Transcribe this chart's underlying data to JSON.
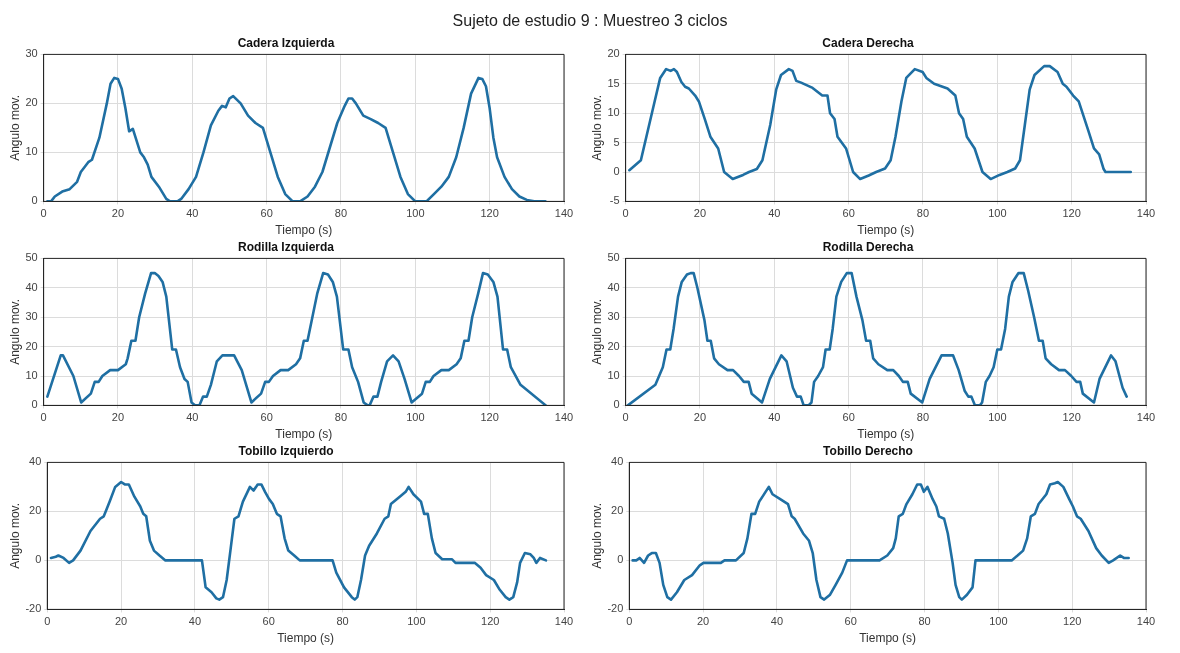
{
  "chart_data": [
    {
      "type": "line",
      "title": "Cadera Izquierda",
      "xlabel": "Tiempo (s)",
      "ylabel": "Angulo mov.",
      "annotations": [
        "Sujeto de estudio 9 : Muestreo 3 ciclos"
      ],
      "color": "#1f6fa3",
      "grid": true,
      "xlim": [
        0,
        140
      ],
      "xticks": [
        0,
        20,
        40,
        60,
        80,
        100,
        120,
        140
      ],
      "ylim": [
        0,
        30
      ],
      "yticks": [
        0,
        10,
        20,
        30
      ],
      "x": [
        1,
        2,
        3,
        5,
        7,
        9,
        10,
        12,
        13,
        15,
        17,
        18,
        19,
        20,
        21,
        22,
        23,
        24,
        26,
        27,
        28,
        29,
        31,
        33,
        34,
        36,
        37,
        39,
        41,
        43,
        45,
        47,
        48,
        49,
        50,
        51,
        53,
        55,
        57,
        59,
        61,
        63,
        65,
        67,
        69,
        71,
        73,
        75,
        77,
        79,
        81,
        82,
        83,
        84,
        86,
        88,
        90,
        92,
        94,
        96,
        98,
        100,
        103,
        105,
        107,
        109,
        111,
        113,
        115,
        117,
        118,
        119,
        120,
        121,
        122,
        124,
        126,
        128,
        130,
        132,
        135
      ],
      "values": [
        0,
        0,
        1,
        2,
        2.5,
        4,
        6,
        8,
        8.5,
        13,
        20,
        24,
        25.2,
        25,
        23,
        19,
        14.3,
        14.8,
        10,
        9,
        7.5,
        5,
        3,
        0.5,
        0,
        0,
        0.5,
        2.5,
        5,
        10,
        15.5,
        18.5,
        19.5,
        19.2,
        21,
        21.5,
        20,
        17.5,
        16,
        15,
        10,
        5,
        1.5,
        0,
        0,
        1,
        3,
        6,
        11,
        16,
        19.5,
        21,
        21,
        20,
        17.5,
        16.8,
        16,
        15,
        10,
        5,
        1.5,
        0,
        0,
        1.5,
        3,
        5,
        9,
        15,
        22,
        25.2,
        25,
        23.5,
        19,
        13,
        9,
        5,
        2.5,
        1,
        0.3,
        0,
        0
      ]
    },
    {
      "type": "line",
      "title": "Cadera Derecha",
      "xlabel": "Tiempo (s)",
      "ylabel": "Angulo mov.",
      "color": "#1f6fa3",
      "grid": true,
      "xlim": [
        0,
        140
      ],
      "xticks": [
        0,
        20,
        40,
        60,
        80,
        100,
        120,
        140
      ],
      "ylim": [
        -5,
        20
      ],
      "yticks": [
        -5,
        0,
        5,
        10,
        15,
        20
      ],
      "x": [
        1,
        4.1,
        7.8,
        9.3,
        10.9,
        12.1,
        13,
        13.8,
        15,
        16,
        17,
        18.7,
        19.7,
        21.3,
        22.8,
        24.9,
        26.5,
        28.8,
        31.6,
        33.2,
        35.3,
        36.8,
        38.9,
        40.5,
        41.8,
        43.9,
        44.9,
        45.9,
        47.2,
        50.3,
        52.9,
        54.3,
        55,
        56.2,
        57,
        59.3,
        61.2,
        63.1,
        65.4,
        67.4,
        69.8,
        71.3,
        72.6,
        74.2,
        75.5,
        77.8,
        79.9,
        80.9,
        83,
        86.6,
        88.7,
        89.7,
        90.8,
        91.8,
        93.9,
        96,
        98.2,
        100.6,
        102.7,
        104.8,
        106.1,
        107.4,
        108.7,
        110,
        112.6,
        114.1,
        116.2,
        117.6,
        118.6,
        120.4,
        121.9,
        124.5,
        126,
        127.4,
        128.6,
        129.1,
        135.9
      ],
      "values": [
        0.3,
        2,
        12,
        16,
        17.5,
        17.2,
        17.5,
        17,
        15.3,
        14.5,
        14.2,
        13,
        12,
        9,
        6,
        4,
        0,
        -1.2,
        -0.5,
        0,
        0.5,
        2,
        8,
        14,
        16.5,
        17.5,
        17.2,
        15.5,
        15.2,
        14.3,
        13,
        13,
        10,
        9,
        6,
        4,
        0,
        -1.2,
        -0.6,
        0,
        0.6,
        2,
        6,
        12,
        16,
        17.5,
        17,
        16,
        15,
        14.2,
        13,
        10,
        9,
        6,
        4,
        0,
        -1.2,
        -0.5,
        0,
        0.6,
        2,
        8,
        14,
        16.5,
        18,
        18,
        17,
        15,
        14.5,
        13,
        12,
        7,
        4,
        3,
        0.5,
        0,
        0
      ]
    },
    {
      "type": "line",
      "title": "Rodilla Izquierda",
      "xlabel": "Tiempo (s)",
      "ylabel": "Angulo mov.",
      "color": "#1f6fa3",
      "grid": true,
      "xlim": [
        0,
        140
      ],
      "xticks": [
        0,
        20,
        40,
        60,
        80,
        100,
        120,
        140
      ],
      "ylim": [
        0,
        50
      ],
      "yticks": [
        0,
        10,
        20,
        30,
        40,
        50
      ],
      "x": [
        1,
        4.6,
        5.2,
        8,
        10.1,
        12.7,
        13.75,
        14.8,
        15.8,
        17.9,
        20,
        22.1,
        22.6,
        23.6,
        24.7,
        25.7,
        27.3,
        28.9,
        29.9,
        30.9,
        32,
        33,
        34.6,
        35.6,
        36.7,
        37.9,
        38.75,
        39.8,
        40.8,
        41.9,
        42.9,
        43.9,
        45,
        46.6,
        48.1,
        51.25,
        53.3,
        55.9,
        58.5,
        59.6,
        60.6,
        61.7,
        63.75,
        65.8,
        67.9,
        69,
        70,
        71,
        72.3,
        73.6,
        75.2,
        76.5,
        77.8,
        78.9,
        80.6,
        82,
        83,
        84.6,
        86.1,
        87.2,
        87.7,
        88.75,
        89.8,
        90.8,
        92.4,
        94,
        95.5,
        97.1,
        99,
        101.8,
        102.8,
        103.9,
        104.9,
        107,
        109,
        111.1,
        112.2,
        113.2,
        114.3,
        115.3,
        116.9,
        118.2,
        119.5,
        121,
        122.1,
        123.6,
        124.7,
        125.7,
        128.3,
        135.1
      ],
      "values": [
        3,
        17,
        17,
        10,
        1,
        4,
        8,
        8,
        10,
        12,
        12,
        14,
        16,
        22,
        22,
        30,
        38,
        45,
        45,
        44,
        42,
        37,
        19,
        19,
        13,
        9,
        8,
        1,
        0,
        0,
        3,
        3,
        7,
        15,
        17,
        17,
        12,
        1,
        4,
        8,
        8,
        10,
        12,
        12,
        14,
        16,
        22,
        22,
        30,
        38,
        45,
        44.5,
        42,
        37,
        19,
        19,
        13,
        8,
        1,
        0,
        0,
        3,
        3,
        8,
        15,
        17,
        15,
        9,
        1,
        4,
        8,
        8,
        10,
        12,
        12,
        14,
        16,
        22,
        22,
        30,
        38,
        45,
        44.5,
        42,
        37,
        19,
        19,
        13,
        7,
        0
      ]
    },
    {
      "type": "line",
      "title": "Rodilla Derecha",
      "xlabel": "Tiempo (s)",
      "ylabel": "Angulo mov.",
      "color": "#1f6fa3",
      "grid": true,
      "xlim": [
        0,
        140
      ],
      "xticks": [
        0,
        20,
        40,
        60,
        80,
        100,
        120,
        140
      ],
      "ylim": [
        0,
        50
      ],
      "yticks": [
        0,
        10,
        20,
        30,
        40,
        50
      ],
      "x": [
        0.6,
        8,
        10,
        11,
        12,
        12.9,
        14.1,
        15.1,
        16.5,
        17.5,
        18.3,
        19.3,
        21.2,
        22,
        22.9,
        23.8,
        25.1,
        27.4,
        28.9,
        30.5,
        31.8,
        33.1,
        33.9,
        36.7,
        38.8,
        41.9,
        43.3,
        45,
        46.1,
        47.1,
        47.9,
        49.2,
        50,
        50.7,
        51.8,
        53.1,
        53.8,
        54.9,
        55.7,
        56.7,
        58,
        59.5,
        60.8,
        62.1,
        63.7,
        64.7,
        65.8,
        66.6,
        68,
        70.4,
        72,
        73.5,
        74.6,
        75.9,
        76.7,
        79.8,
        81.8,
        85,
        88.1,
        89.6,
        91.2,
        92.2,
        93,
        94,
        95.3,
        95.9,
        96.9,
        97.9,
        99,
        100,
        101,
        102.1,
        103.1,
        104.1,
        105.7,
        107.1,
        108.3,
        109.9,
        111.2,
        112.2,
        113,
        114.5,
        116.6,
        118.2,
        119.9,
        121.3,
        122.3,
        123,
        126,
        127.5,
        130.6,
        131.8,
        133.7,
        134.8
      ],
      "values": [
        0,
        7,
        13,
        19,
        19,
        26,
        37,
        42,
        44.5,
        45,
        45,
        40,
        29,
        22,
        22,
        16,
        14,
        12,
        12,
        10,
        8,
        8,
        4,
        1,
        9,
        17,
        15,
        6,
        3,
        3,
        0,
        0,
        1,
        8,
        10,
        13,
        19,
        19,
        26,
        37,
        42,
        45,
        45,
        37,
        29,
        22,
        22,
        16,
        14,
        12,
        12,
        10,
        8,
        8,
        4,
        1,
        9,
        17,
        17,
        12,
        5,
        3,
        3,
        0,
        0,
        1,
        8,
        10,
        13,
        19,
        19,
        26,
        37,
        42,
        45,
        45,
        39,
        30,
        22,
        22,
        16,
        14,
        12,
        12,
        10,
        8,
        8,
        4,
        1,
        9,
        17,
        15,
        6,
        3
      ]
    },
    {
      "type": "line",
      "title": "Tobillo Izquierdo",
      "xlabel": "Tiempo (s)",
      "ylabel": "Angulo mov.",
      "color": "#1f6fa3",
      "grid": true,
      "xlim": [
        0,
        140
      ],
      "xticks": [
        0,
        20,
        40,
        60,
        80,
        100,
        120,
        140
      ],
      "ylim": [
        -20,
        40
      ],
      "yticks": [
        -20,
        0,
        20,
        40
      ],
      "x": [
        1,
        2.3,
        3,
        4.4,
        5.9,
        7,
        9,
        11.7,
        14.3,
        15.3,
        16.9,
        18.4,
        20,
        21,
        22.1,
        23.6,
        25.2,
        26,
        26.8,
        27.8,
        28.9,
        30.4,
        32,
        41.9,
        42.9,
        44.5,
        45.8,
        46.6,
        47.6,
        48.6,
        49.7,
        50.7,
        51.8,
        53,
        54.9,
        55.9,
        57,
        58,
        59,
        60.1,
        61.1,
        62.2,
        63.2,
        64.3,
        65.3,
        66.9,
        68.4,
        77.3,
        78.3,
        80.4,
        82.5,
        83.3,
        84,
        85,
        86.1,
        87.2,
        89.3,
        91.4,
        92.4,
        93.1,
        95.5,
        97.1,
        97.9,
        99.2,
        101.25,
        102.1,
        103.1,
        104.2,
        105.2,
        107,
        109.6,
        110.6,
        115.8,
        117.4,
        118.9,
        121,
        122.6,
        124.2,
        125.2,
        126.25,
        127.3,
        128.1,
        129.4,
        130.9,
        131.8,
        132.5,
        133.5,
        135.1
      ],
      "values": [
        1,
        1.5,
        2,
        1,
        -1,
        0,
        4,
        12,
        17,
        18,
        24,
        30,
        32,
        31,
        31,
        26,
        22,
        19,
        18,
        8,
        4,
        2,
        0,
        0,
        -11,
        -13,
        -15.5,
        -16,
        -15,
        -8,
        5,
        17,
        18,
        24,
        30,
        28.5,
        31,
        31,
        28,
        25,
        23,
        19,
        18,
        9,
        4,
        2,
        0,
        0,
        -5,
        -11,
        -15,
        -16,
        -15,
        -8,
        2,
        6,
        11,
        17,
        18,
        23,
        26,
        28,
        30,
        27,
        24,
        19,
        19,
        9,
        3,
        0.5,
        0.5,
        -1,
        -1,
        -3,
        -6,
        -8,
        -12,
        -15,
        -16,
        -15,
        -9,
        -1,
        3,
        2.5,
        1,
        -1,
        1,
        0
      ]
    },
    {
      "type": "line",
      "title": "Tobillo Derecho",
      "xlabel": "Tiempo (s)",
      "ylabel": "Angulo mov.",
      "color": "#1f6fa3",
      "grid": true,
      "xlim": [
        0,
        140
      ],
      "xticks": [
        0,
        20,
        40,
        60,
        80,
        100,
        120,
        140
      ],
      "ylim": [
        -20,
        40
      ],
      "yticks": [
        -20,
        0,
        20,
        40
      ],
      "x": [
        0.9,
        1.9,
        2.8,
        4,
        5.1,
        6.1,
        7.2,
        8.2,
        9.2,
        10.3,
        11.3,
        12.9,
        14.9,
        17,
        19.1,
        20.1,
        24.8,
        25.8,
        28.9,
        31,
        32,
        33.1,
        34.1,
        35.2,
        37.8,
        38.8,
        40.9,
        43,
        44,
        44.8,
        47.1,
        48.7,
        49.7,
        50.7,
        51.8,
        52.8,
        54.4,
        55.9,
        57.7,
        59,
        67.8,
        69.9,
        71.5,
        72.2,
        73,
        74.1,
        75.1,
        76.7,
        78,
        79,
        79.8,
        80.8,
        82.2,
        83.2,
        83.9,
        85.3,
        86.3,
        87.6,
        88.4,
        89.4,
        90.1,
        91.5,
        93,
        93.8,
        103.6,
        105.2,
        106.7,
        107.8,
        108.8,
        109.9,
        110.9,
        113,
        114,
        115.3,
        116.1,
        117.6,
        119.2,
        120.2,
        121.3,
        122.3,
        124.4,
        126.5,
        128,
        129.9,
        131.1,
        133,
        134,
        135.3
      ],
      "values": [
        0,
        0,
        1,
        -1,
        2,
        3,
        3,
        -1,
        -10,
        -15,
        -16,
        -13,
        -8,
        -6,
        -2,
        -1,
        -1,
        0,
        0,
        3,
        9,
        19,
        19,
        24,
        30,
        27,
        25,
        23,
        18,
        17,
        11,
        8,
        3,
        -8,
        -15,
        -16,
        -14,
        -10,
        -5,
        0,
        0,
        2,
        5,
        9,
        18,
        19,
        23,
        27,
        31,
        31,
        28,
        30,
        25,
        22,
        18,
        17,
        11,
        -1,
        -10,
        -15,
        -16,
        -14,
        -11,
        0,
        0,
        2,
        4,
        9,
        18,
        19,
        23,
        27,
        31,
        31.5,
        32,
        30,
        25,
        22,
        18,
        17,
        12,
        5,
        2,
        -1,
        0,
        2,
        1,
        1
      ]
    }
  ]
}
